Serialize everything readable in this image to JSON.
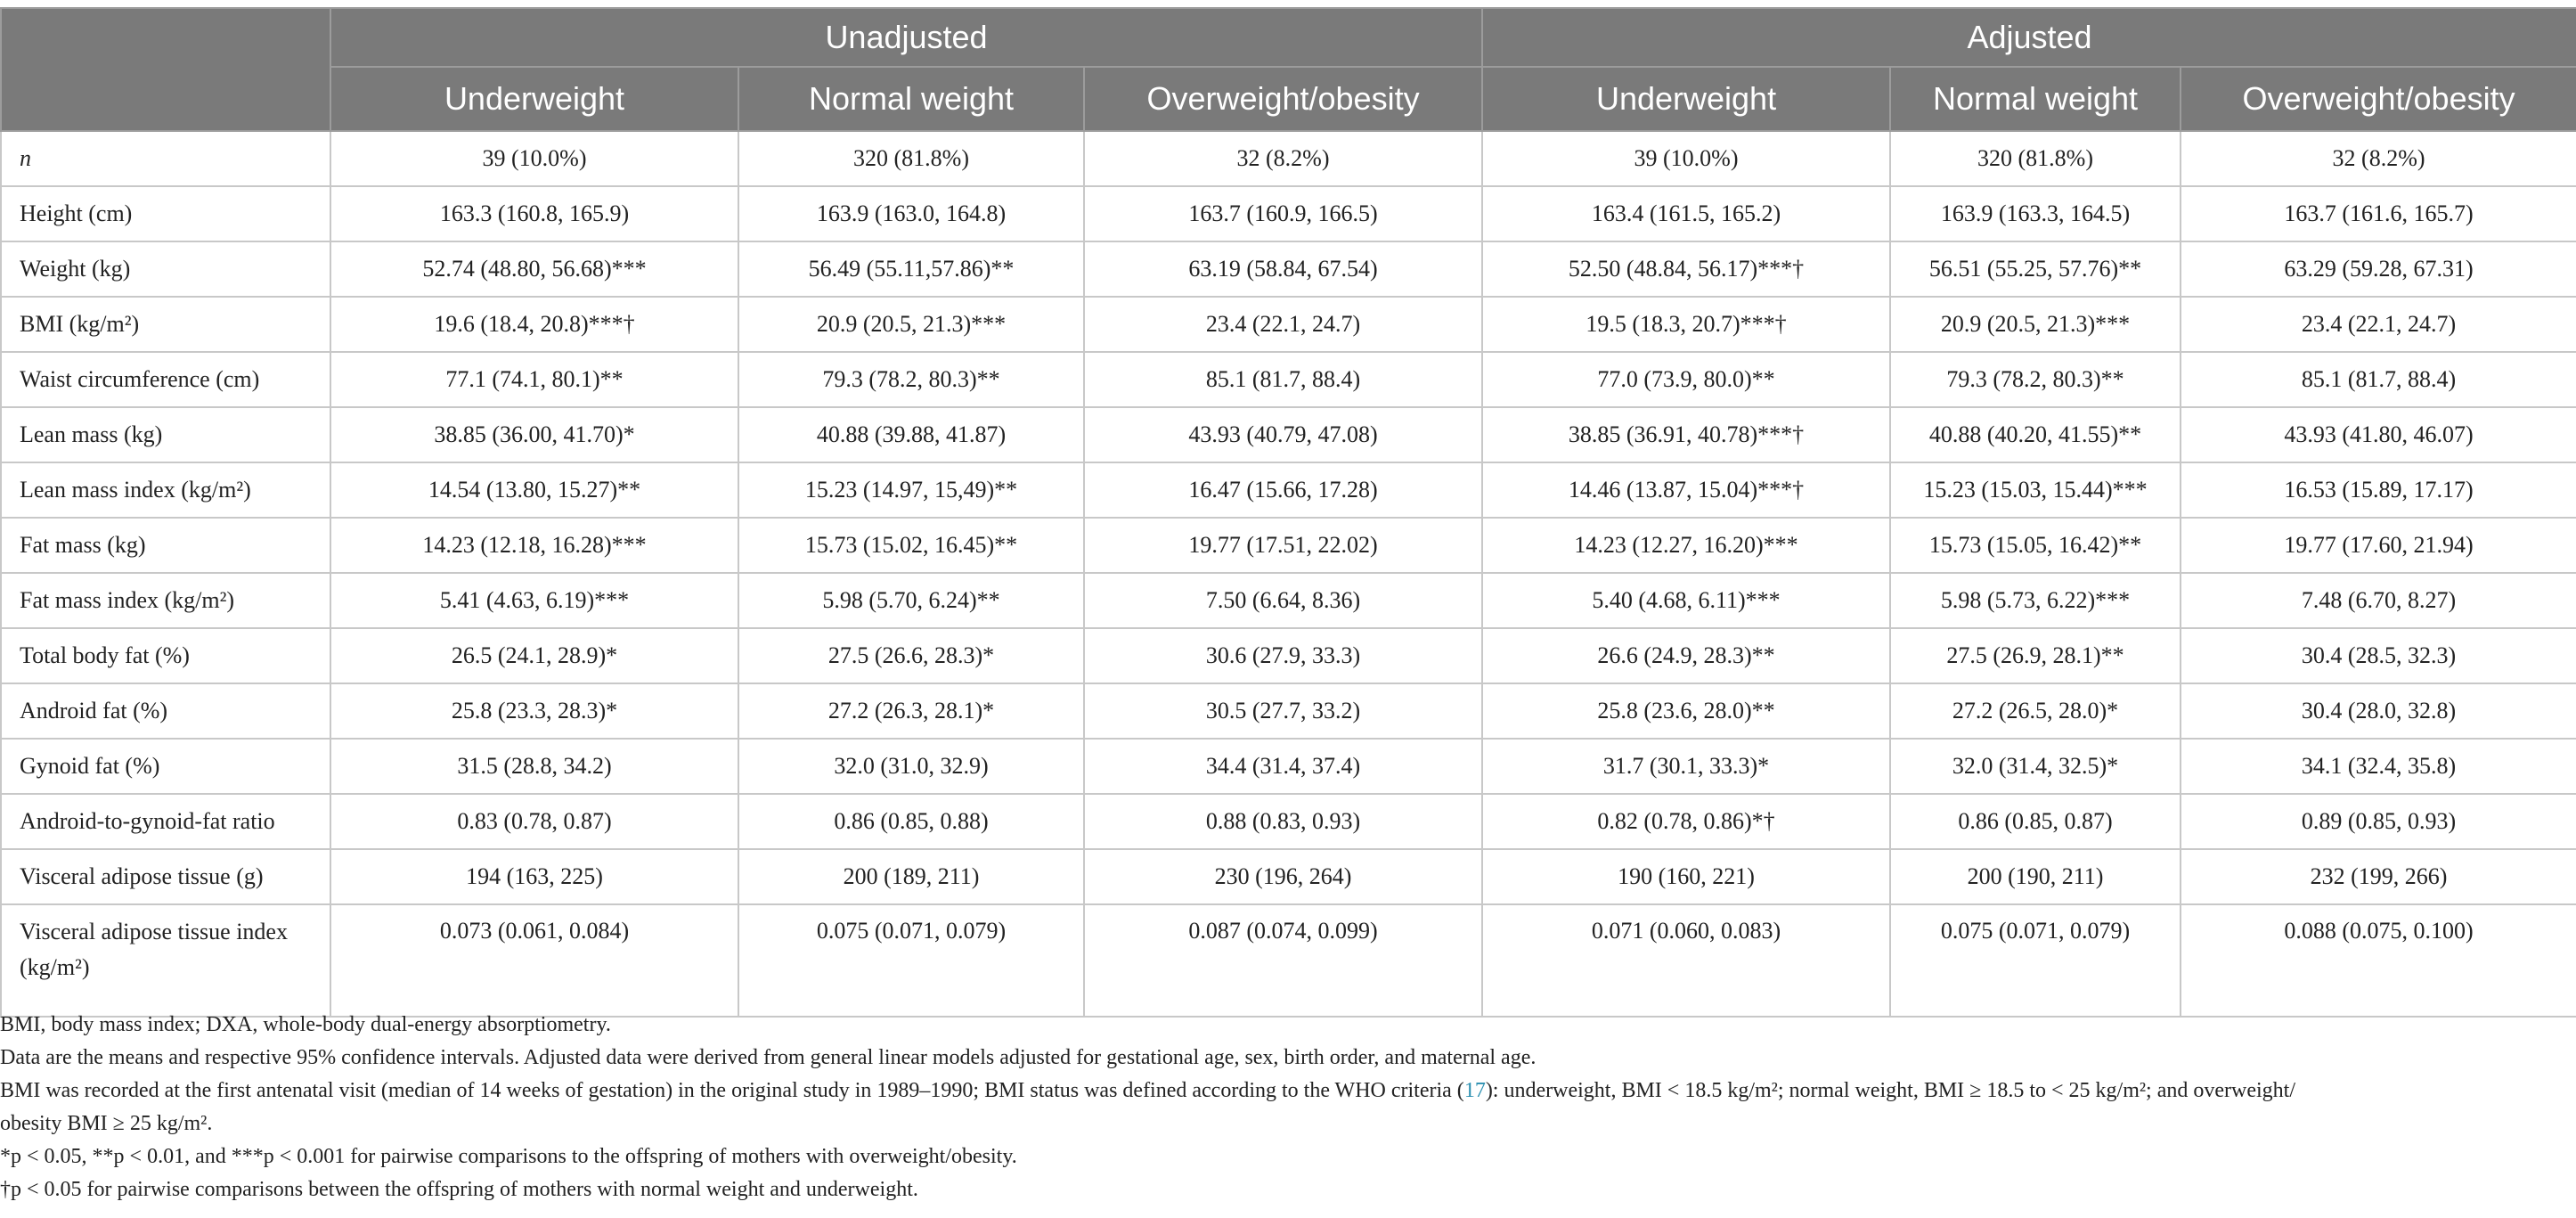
{
  "header": {
    "groups": [
      "Unadjusted",
      "Adjusted"
    ],
    "columns": [
      "Underweight",
      "Normal weight",
      "Overweight/obesity",
      "Underweight",
      "Normal weight",
      "Overweight/obesity"
    ]
  },
  "rows": [
    {
      "label": "n",
      "cells": [
        "39 (10.0%)",
        "320 (81.8%)",
        "32 (8.2%)",
        "39 (10.0%)",
        "320 (81.8%)",
        "32 (8.2%)"
      ]
    },
    {
      "label": "Height (cm)",
      "cells": [
        "163.3 (160.8, 165.9)",
        "163.9 (163.0, 164.8)",
        "163.7 (160.9, 166.5)",
        "163.4 (161.5, 165.2)",
        "163.9 (163.3, 164.5)",
        "163.7 (161.6, 165.7)"
      ]
    },
    {
      "label": "Weight (kg)",
      "cells": [
        "52.74 (48.80, 56.68)***",
        "56.49 (55.11,57.86)**",
        "63.19 (58.84, 67.54)",
        "52.50 (48.84, 56.17)***†",
        "56.51 (55.25, 57.76)**",
        "63.29 (59.28, 67.31)"
      ]
    },
    {
      "label": "BMI (kg/m²)",
      "cells": [
        "19.6 (18.4, 20.8)***†",
        "20.9 (20.5, 21.3)***",
        "23.4 (22.1, 24.7)",
        "19.5 (18.3, 20.7)***†",
        "20.9 (20.5, 21.3)***",
        "23.4 (22.1, 24.7)"
      ]
    },
    {
      "label": "Waist circumference (cm)",
      "cells": [
        "77.1 (74.1, 80.1)**",
        "79.3 (78.2, 80.3)**",
        "85.1 (81.7, 88.4)",
        "77.0 (73.9, 80.0)**",
        "79.3 (78.2, 80.3)**",
        "85.1 (81.7, 88.4)"
      ]
    },
    {
      "label": "Lean mass (kg)",
      "cells": [
        "38.85 (36.00, 41.70)*",
        "40.88 (39.88, 41.87)",
        "43.93 (40.79, 47.08)",
        "38.85 (36.91, 40.78)***†",
        "40.88 (40.20, 41.55)**",
        "43.93 (41.80, 46.07)"
      ]
    },
    {
      "label": "Lean mass index (kg/m²)",
      "cells": [
        "14.54 (13.80, 15.27)**",
        "15.23 (14.97, 15,49)**",
        "16.47 (15.66, 17.28)",
        "14.46 (13.87, 15.04)***†",
        "15.23 (15.03, 15.44)***",
        "16.53 (15.89, 17.17)"
      ]
    },
    {
      "label": "Fat mass (kg)",
      "cells": [
        "14.23 (12.18, 16.28)***",
        "15.73 (15.02, 16.45)**",
        "19.77 (17.51, 22.02)",
        "14.23 (12.27, 16.20)***",
        "15.73 (15.05, 16.42)**",
        "19.77 (17.60, 21.94)"
      ]
    },
    {
      "label": "Fat mass index (kg/m²)",
      "cells": [
        "5.41 (4.63, 6.19)***",
        "5.98 (5.70, 6.24)**",
        "7.50 (6.64, 8.36)",
        "5.40 (4.68, 6.11)***",
        "5.98 (5.73, 6.22)***",
        "7.48 (6.70, 8.27)"
      ]
    },
    {
      "label": "Total body fat (%)",
      "cells": [
        "26.5 (24.1, 28.9)*",
        "27.5 (26.6, 28.3)*",
        "30.6 (27.9, 33.3)",
        "26.6 (24.9, 28.3)**",
        "27.5 (26.9, 28.1)**",
        "30.4 (28.5, 32.3)"
      ]
    },
    {
      "label": "Android fat (%)",
      "cells": [
        "25.8 (23.3, 28.3)*",
        "27.2 (26.3, 28.1)*",
        "30.5 (27.7, 33.2)",
        "25.8 (23.6, 28.0)**",
        "27.2 (26.5, 28.0)*",
        "30.4 (28.0, 32.8)"
      ]
    },
    {
      "label": "Gynoid fat (%)",
      "cells": [
        "31.5 (28.8, 34.2)",
        "32.0 (31.0, 32.9)",
        "34.4 (31.4, 37.4)",
        "31.7 (30.1, 33.3)*",
        "32.0 (31.4, 32.5)*",
        "34.1 (32.4, 35.8)"
      ]
    },
    {
      "label": "Android-to-gynoid-fat ratio",
      "cells": [
        "0.83 (0.78, 0.87)",
        "0.86 (0.85, 0.88)",
        "0.88 (0.83, 0.93)",
        "0.82 (0.78, 0.86)*†",
        "0.86 (0.85, 0.87)",
        "0.89 (0.85, 0.93)"
      ]
    },
    {
      "label": "Visceral adipose tissue (g)",
      "cells": [
        "194 (163, 225)",
        "200 (189, 211)",
        "230 (196, 264)",
        "190 (160, 221)",
        "200 (190, 211)",
        "232 (199, 266)"
      ]
    },
    {
      "label": "Visceral adipose tissue index (kg/m²)",
      "cells": [
        "0.073 (0.061, 0.084)",
        "0.075 (0.071, 0.079)",
        "0.087 (0.074, 0.099)",
        "0.071 (0.060, 0.083)",
        "0.075 (0.071, 0.079)",
        "0.088 (0.075, 0.100)"
      ]
    }
  ],
  "footnotes": {
    "abbreviations": "BMI, body mass index; DXA, whole-body dual-energy absorptiometry.",
    "data_note": "Data are the means and respective 95% confidence intervals. Adjusted data were derived from general linear models adjusted for gestational age, sex, birth order, and maternal age.",
    "bmi_note_before_ref": "BMI was recorded at the first antenatal visit (median of 14 weeks of gestation) in the original study in 1989–1990; BMI status was defined according to the WHO criteria (",
    "bmi_note_ref": "17",
    "bmi_note_after_ref": "): underweight, BMI < 18.5 kg/m²; normal weight, BMI ≥ 18.5 to < 25 kg/m²; and overweight/",
    "bmi_note_line2": "obesity BMI ≥ 25 kg/m².",
    "significance_note": "*p < 0.05, **p < 0.01, and ***p < 0.001 for pairwise comparisons to the offspring of mothers with overweight/obesity.",
    "dagger_note": "†p < 0.05 for pairwise comparisons between the offspring of mothers with normal weight and underweight."
  }
}
